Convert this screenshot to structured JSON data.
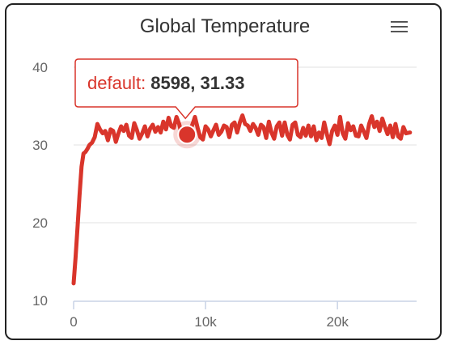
{
  "chart_data": {
    "type": "line",
    "title": "Global Temperature",
    "xlabel": "",
    "ylabel": "",
    "xlim": [
      0,
      26000
    ],
    "ylim": [
      10,
      40
    ],
    "x_ticks": [
      0,
      10000,
      20000
    ],
    "x_tick_labels": [
      "0",
      "10k",
      "20k"
    ],
    "y_ticks": [
      10,
      20,
      30,
      40
    ],
    "y_tick_labels": [
      "10",
      "20",
      "30",
      "40"
    ],
    "grid": "horizontal",
    "legend": "none",
    "series": [
      {
        "name": "default",
        "color": "#d9352b",
        "x": [
          0,
          150,
          300,
          450,
          600,
          750,
          900,
          1050,
          1200,
          1400,
          1600,
          1800,
          2000,
          2200,
          2400,
          2600,
          2800,
          3000,
          3200,
          3400,
          3600,
          3800,
          4000,
          4200,
          4400,
          4600,
          4800,
          5000,
          5200,
          5400,
          5600,
          5800,
          6000,
          6200,
          6400,
          6600,
          6800,
          7000,
          7200,
          7400,
          7600,
          7800,
          8000,
          8200,
          8400,
          8598,
          8800,
          9000,
          9200,
          9400,
          9600,
          9800,
          10000,
          10200,
          10400,
          10600,
          10800,
          11000,
          11200,
          11400,
          11600,
          11800,
          12000,
          12200,
          12400,
          12600,
          12800,
          13000,
          13200,
          13400,
          13600,
          13800,
          14000,
          14200,
          14400,
          14600,
          14800,
          15000,
          15200,
          15400,
          15600,
          15800,
          16000,
          16200,
          16400,
          16600,
          16800,
          17000,
          17200,
          17400,
          17600,
          17800,
          18000,
          18200,
          18400,
          18600,
          18800,
          19000,
          19200,
          19400,
          19600,
          19800,
          20000,
          20200,
          20400,
          20600,
          20800,
          21000,
          21200,
          21400,
          21600,
          21800,
          22000,
          22200,
          22400,
          22600,
          22800,
          23000,
          23200,
          23400,
          23600,
          23800,
          24000,
          24200,
          24400,
          24600,
          24800,
          25000,
          25200,
          25500
        ],
        "y": [
          12.2,
          15.5,
          19.5,
          23.5,
          27.2,
          28.9,
          29.1,
          29.5,
          30.0,
          30.3,
          31.0,
          32.7,
          32.0,
          31.5,
          31.8,
          30.6,
          32.0,
          31.8,
          30.4,
          31.5,
          32.4,
          31.8,
          32.6,
          31.2,
          30.9,
          32.8,
          31.9,
          30.8,
          31.5,
          32.4,
          31.1,
          32.1,
          32.6,
          31.7,
          32.3,
          31.6,
          33.0,
          32.0,
          33.5,
          32.4,
          32.2,
          33.6,
          32.7,
          31.2,
          31.4,
          31.33,
          31.8,
          32.6,
          33.6,
          32.2,
          31.0,
          30.7,
          32.4,
          32.0,
          31.1,
          31.9,
          32.6,
          31.3,
          31.7,
          32.5,
          32.3,
          31.0,
          32.6,
          32.9,
          31.6,
          32.9,
          33.8,
          32.7,
          32.5,
          31.8,
          32.7,
          32.2,
          31.3,
          32.6,
          32.3,
          30.9,
          33.0,
          31.6,
          30.8,
          32.4,
          32.9,
          31.2,
          32.9,
          31.3,
          30.7,
          32.6,
          32.9,
          31.3,
          31.0,
          32.2,
          31.2,
          32.5,
          31.1,
          32.4,
          30.6,
          31.6,
          30.9,
          32.9,
          31.4,
          30.1,
          31.8,
          32.5,
          31.3,
          33.6,
          31.5,
          30.8,
          32.8,
          31.9,
          32.4,
          31.2,
          31.1,
          32.5,
          31.7,
          30.9,
          32.7,
          33.7,
          32.3,
          33.0,
          31.8,
          33.4,
          32.3,
          31.4,
          32.5,
          31.0,
          32.7,
          31.1,
          30.8,
          32.3,
          31.5,
          31.6
        ]
      }
    ],
    "tooltip": {
      "series": "default",
      "x": 8598,
      "y": 31.33,
      "series_label": "default",
      "sep": ": ",
      "value_text": "8598, 31.33"
    }
  },
  "ui": {
    "menu_icon": "hamburger-menu-icon"
  }
}
